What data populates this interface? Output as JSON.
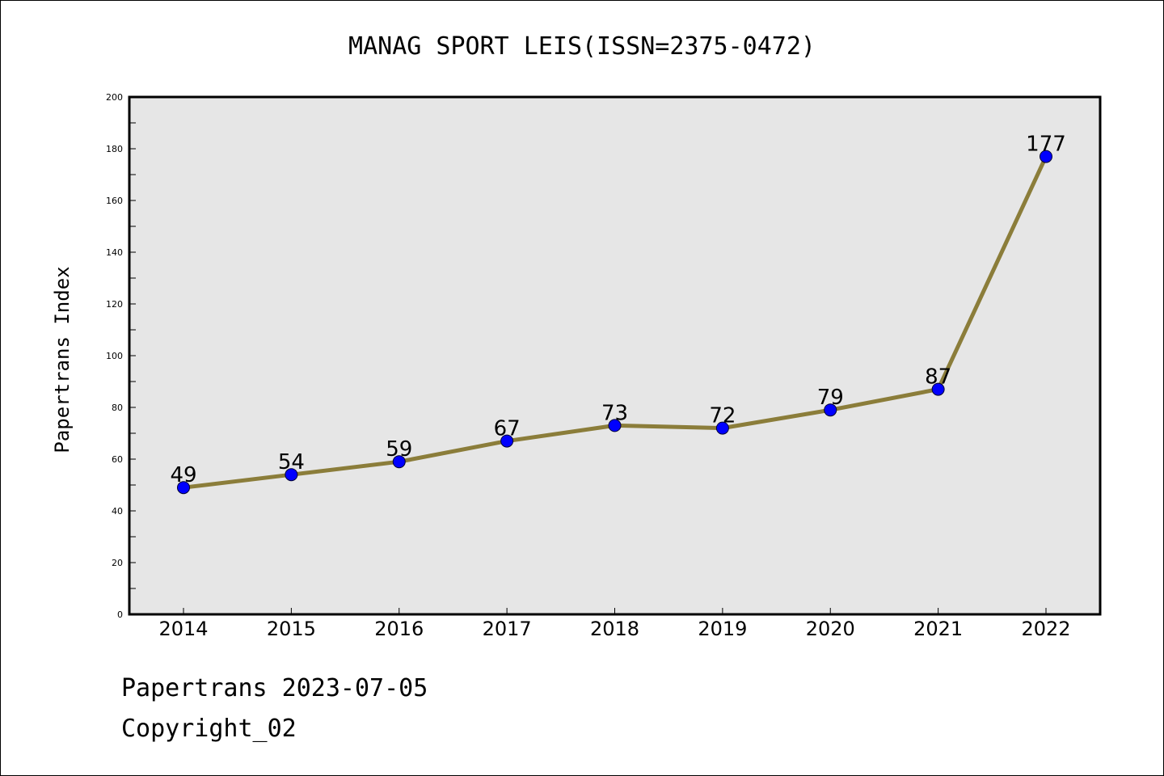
{
  "chart_data": {
    "type": "line",
    "title": "MANAG SPORT LEIS(ISSN=2375-0472)",
    "ylabel": "Papertrans Index",
    "xlabel": "",
    "categories": [
      "2014",
      "2015",
      "2016",
      "2017",
      "2018",
      "2019",
      "2020",
      "2021",
      "2022"
    ],
    "series": [
      {
        "values": [
          49,
          54,
          59,
          67,
          73,
          72,
          79,
          87,
          177
        ],
        "data_labels": [
          "49",
          "54",
          "59",
          "67",
          "73",
          "72",
          "79",
          "87",
          "177"
        ]
      }
    ],
    "ylim": [
      0,
      200
    ],
    "yticks": [
      "0",
      "20",
      "40",
      "60",
      "80",
      "100",
      "120",
      "140",
      "160",
      "180",
      "200"
    ],
    "grid": false,
    "legend": "none",
    "colors": {
      "line": "#8b7d3a",
      "marker": "#0000ff",
      "plot_background": "#e6e6e6",
      "axes_border": "#000000"
    }
  },
  "footer": {
    "line1": "Papertrans 2023-07-05",
    "line2": "Copyright_02"
  }
}
